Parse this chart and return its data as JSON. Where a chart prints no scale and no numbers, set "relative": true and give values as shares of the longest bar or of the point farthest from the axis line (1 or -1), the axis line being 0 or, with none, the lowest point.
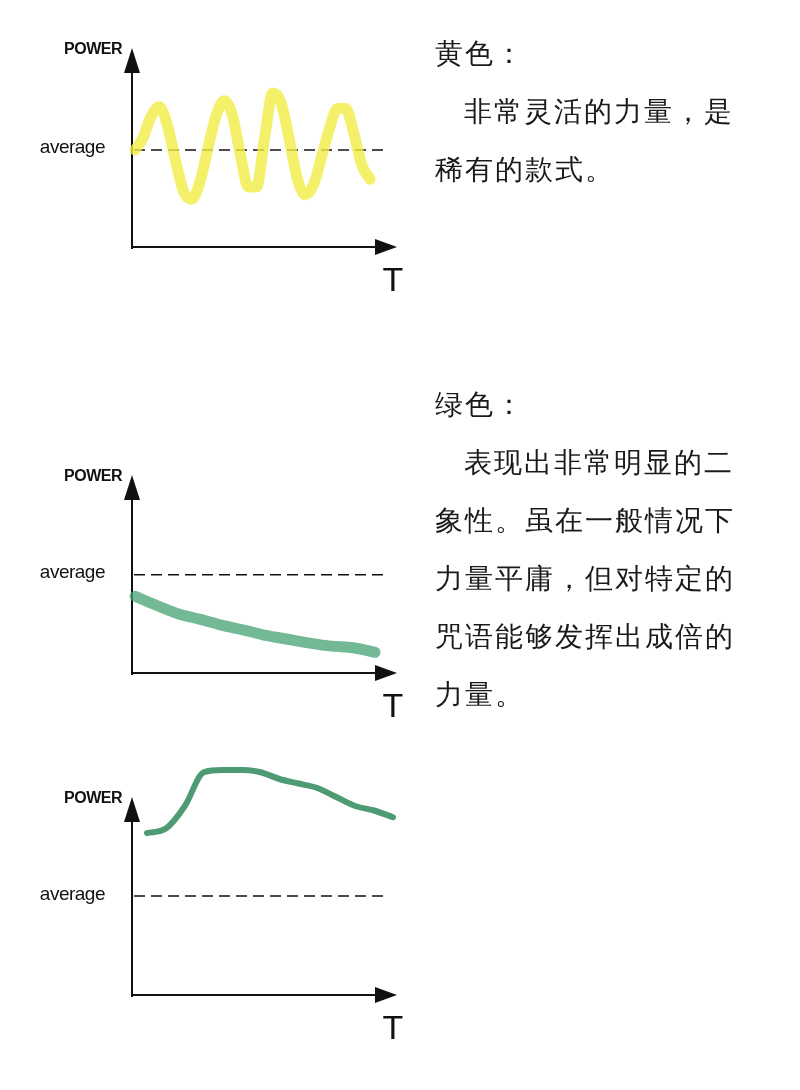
{
  "chart_data": [
    {
      "type": "line",
      "relative": true,
      "xlabel": "T",
      "ylabel": "POWER",
      "categories": [
        null,
        null,
        null,
        null,
        null,
        null,
        null,
        null,
        null,
        null,
        null,
        null,
        null,
        null,
        null,
        null,
        null,
        null,
        null,
        null,
        null,
        null,
        null,
        null,
        null,
        null,
        null,
        null,
        null,
        null
      ],
      "series": [
        {
          "color": "#f3ec45",
          "values": [
            0.63,
            0.71,
            0.85,
            0.91,
            0.79,
            0.56,
            0.36,
            0.31,
            0.42,
            0.64,
            0.85,
            0.95,
            0.86,
            0.6,
            0.39,
            0.39,
            0.71,
            1.0,
            0.94,
            0.71,
            0.45,
            0.34,
            0.4,
            0.58,
            0.77,
            0.9,
            0.9,
            0.74,
            0.53,
            0.44
          ]
        }
      ],
      "ref_lines": [
        {
          "axis": "y",
          "value": 0.63,
          "label": "average",
          "line_style": "dashed",
          "color": "#111111"
        }
      ],
      "annotations": [
        "黄色：",
        "非常灵活的力量，是稀有的款式。"
      ]
    },
    {
      "type": "line",
      "relative": true,
      "xlabel": "T",
      "ylabel": "POWER",
      "categories": [
        null,
        null,
        null,
        null,
        null,
        null,
        null,
        null,
        null,
        null,
        null,
        null
      ],
      "series": [
        {
          "color": "#45a272",
          "values": [
            1.0,
            0.88,
            0.77,
            0.7,
            0.62,
            0.56,
            0.49,
            0.44,
            0.39,
            0.35,
            0.33,
            0.27
          ]
        }
      ],
      "ref_lines": [
        {
          "axis": "y",
          "value": 1.28,
          "label": "average",
          "line_style": "dashed",
          "color": "#111111"
        }
      ],
      "annotations": [
        "绿色：",
        "表现出非常明显的二象性。虽在一般情况下力量平庸，但对特定的咒语能够发挥出成倍的力量。"
      ]
    },
    {
      "type": "line",
      "relative": true,
      "xlabel": "T",
      "ylabel": "POWER",
      "categories": [
        null,
        null,
        null,
        null,
        null,
        null,
        null,
        null,
        null,
        null,
        null,
        null,
        null,
        null
      ],
      "series": [
        {
          "color": "#3b8f63",
          "values": [
            0.72,
            0.74,
            0.84,
            0.99,
            1.0,
            1.0,
            0.99,
            0.96,
            0.94,
            0.92,
            0.88,
            0.84,
            0.82,
            0.79
          ]
        }
      ],
      "ref_lines": [
        {
          "axis": "y",
          "value": 0.44,
          "label": "average",
          "line_style": "dashed",
          "color": "#111111"
        }
      ]
    }
  ]
}
